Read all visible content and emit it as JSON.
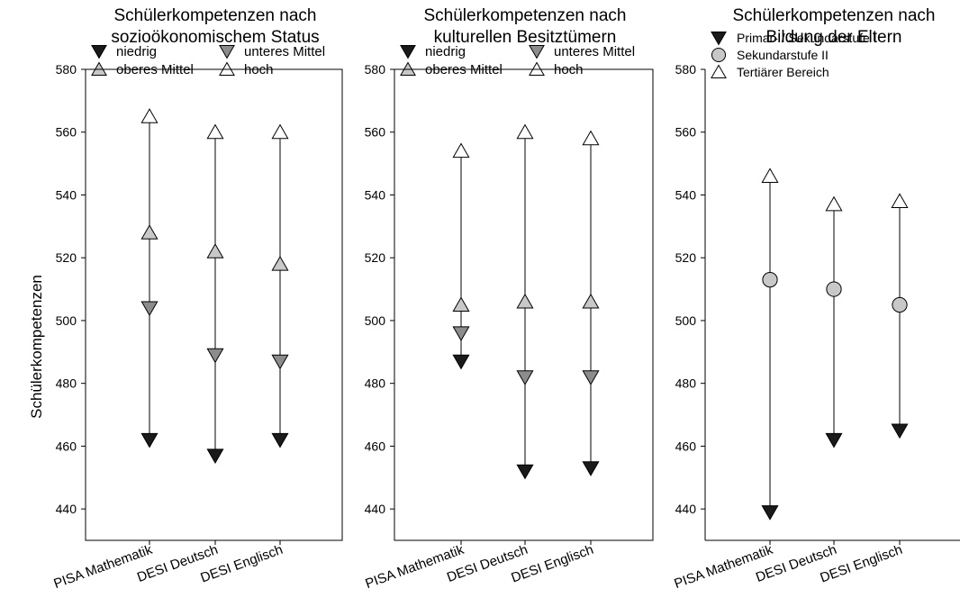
{
  "ylabel": "Schülerkompetenzen",
  "colors": {
    "dark": "#1a1a1a",
    "mid": "#8c8c8c",
    "light": "#c8c8c8",
    "white": "#ffffff"
  },
  "chart_data": [
    {
      "type": "dot-range",
      "title": [
        "Schülerkompetenzen nach",
        "sozioökonomischem Status"
      ],
      "categories": [
        "PISA Mathematik",
        "DESI Deutsch",
        "DESI Englisch"
      ],
      "ylim": [
        430,
        580
      ],
      "yticks": [
        440,
        460,
        480,
        500,
        520,
        540,
        560,
        580
      ],
      "legend_layout": "two-column",
      "series": [
        {
          "name": "niedrig",
          "marker": "triangle-down",
          "fill": "#1a1a1a",
          "values": [
            462,
            457,
            462
          ]
        },
        {
          "name": "unteres Mittel",
          "marker": "triangle-down",
          "fill": "#8c8c8c",
          "values": [
            504,
            489,
            487
          ]
        },
        {
          "name": "oberes Mittel",
          "marker": "triangle-up",
          "fill": "#c8c8c8",
          "values": [
            528,
            522,
            518
          ]
        },
        {
          "name": "hoch",
          "marker": "triangle-up",
          "fill": "#ffffff",
          "values": [
            565,
            560,
            560
          ]
        }
      ]
    },
    {
      "type": "dot-range",
      "title": [
        "Schülerkompetenzen nach",
        "kulturellen Besitztümern"
      ],
      "categories": [
        "PISA Mathematik",
        "DESI Deutsch",
        "DESI Englisch"
      ],
      "ylim": [
        430,
        580
      ],
      "yticks": [
        440,
        460,
        480,
        500,
        520,
        540,
        560,
        580
      ],
      "legend_layout": "two-column",
      "series": [
        {
          "name": "niedrig",
          "marker": "triangle-down",
          "fill": "#1a1a1a",
          "values": [
            487,
            452,
            453
          ]
        },
        {
          "name": "unteres Mittel",
          "marker": "triangle-down",
          "fill": "#8c8c8c",
          "values": [
            496,
            482,
            482
          ]
        },
        {
          "name": "oberes Mittel",
          "marker": "triangle-up",
          "fill": "#c8c8c8",
          "values": [
            505,
            506,
            506
          ]
        },
        {
          "name": "hoch",
          "marker": "triangle-up",
          "fill": "#ffffff",
          "values": [
            554,
            560,
            558
          ]
        }
      ]
    },
    {
      "type": "dot-range",
      "title": [
        "Schülerkompetenzen nach",
        "Bildung der Eltern"
      ],
      "categories": [
        "PISA Mathematik",
        "DESI Deutsch",
        "DESI Englisch"
      ],
      "ylim": [
        430,
        580
      ],
      "yticks": [
        440,
        460,
        480,
        500,
        520,
        540,
        560,
        580
      ],
      "legend_layout": "one-column",
      "series": [
        {
          "name": "Primar- / Sekundarstufe I",
          "marker": "triangle-down",
          "fill": "#1a1a1a",
          "values": [
            439,
            462,
            465
          ]
        },
        {
          "name": "Sekundarstufe II",
          "marker": "circle",
          "fill": "#c8c8c8",
          "values": [
            513,
            510,
            505
          ]
        },
        {
          "name": "Tertiärer Bereich",
          "marker": "triangle-up",
          "fill": "#ffffff",
          "values": [
            546,
            537,
            538
          ]
        }
      ]
    }
  ]
}
